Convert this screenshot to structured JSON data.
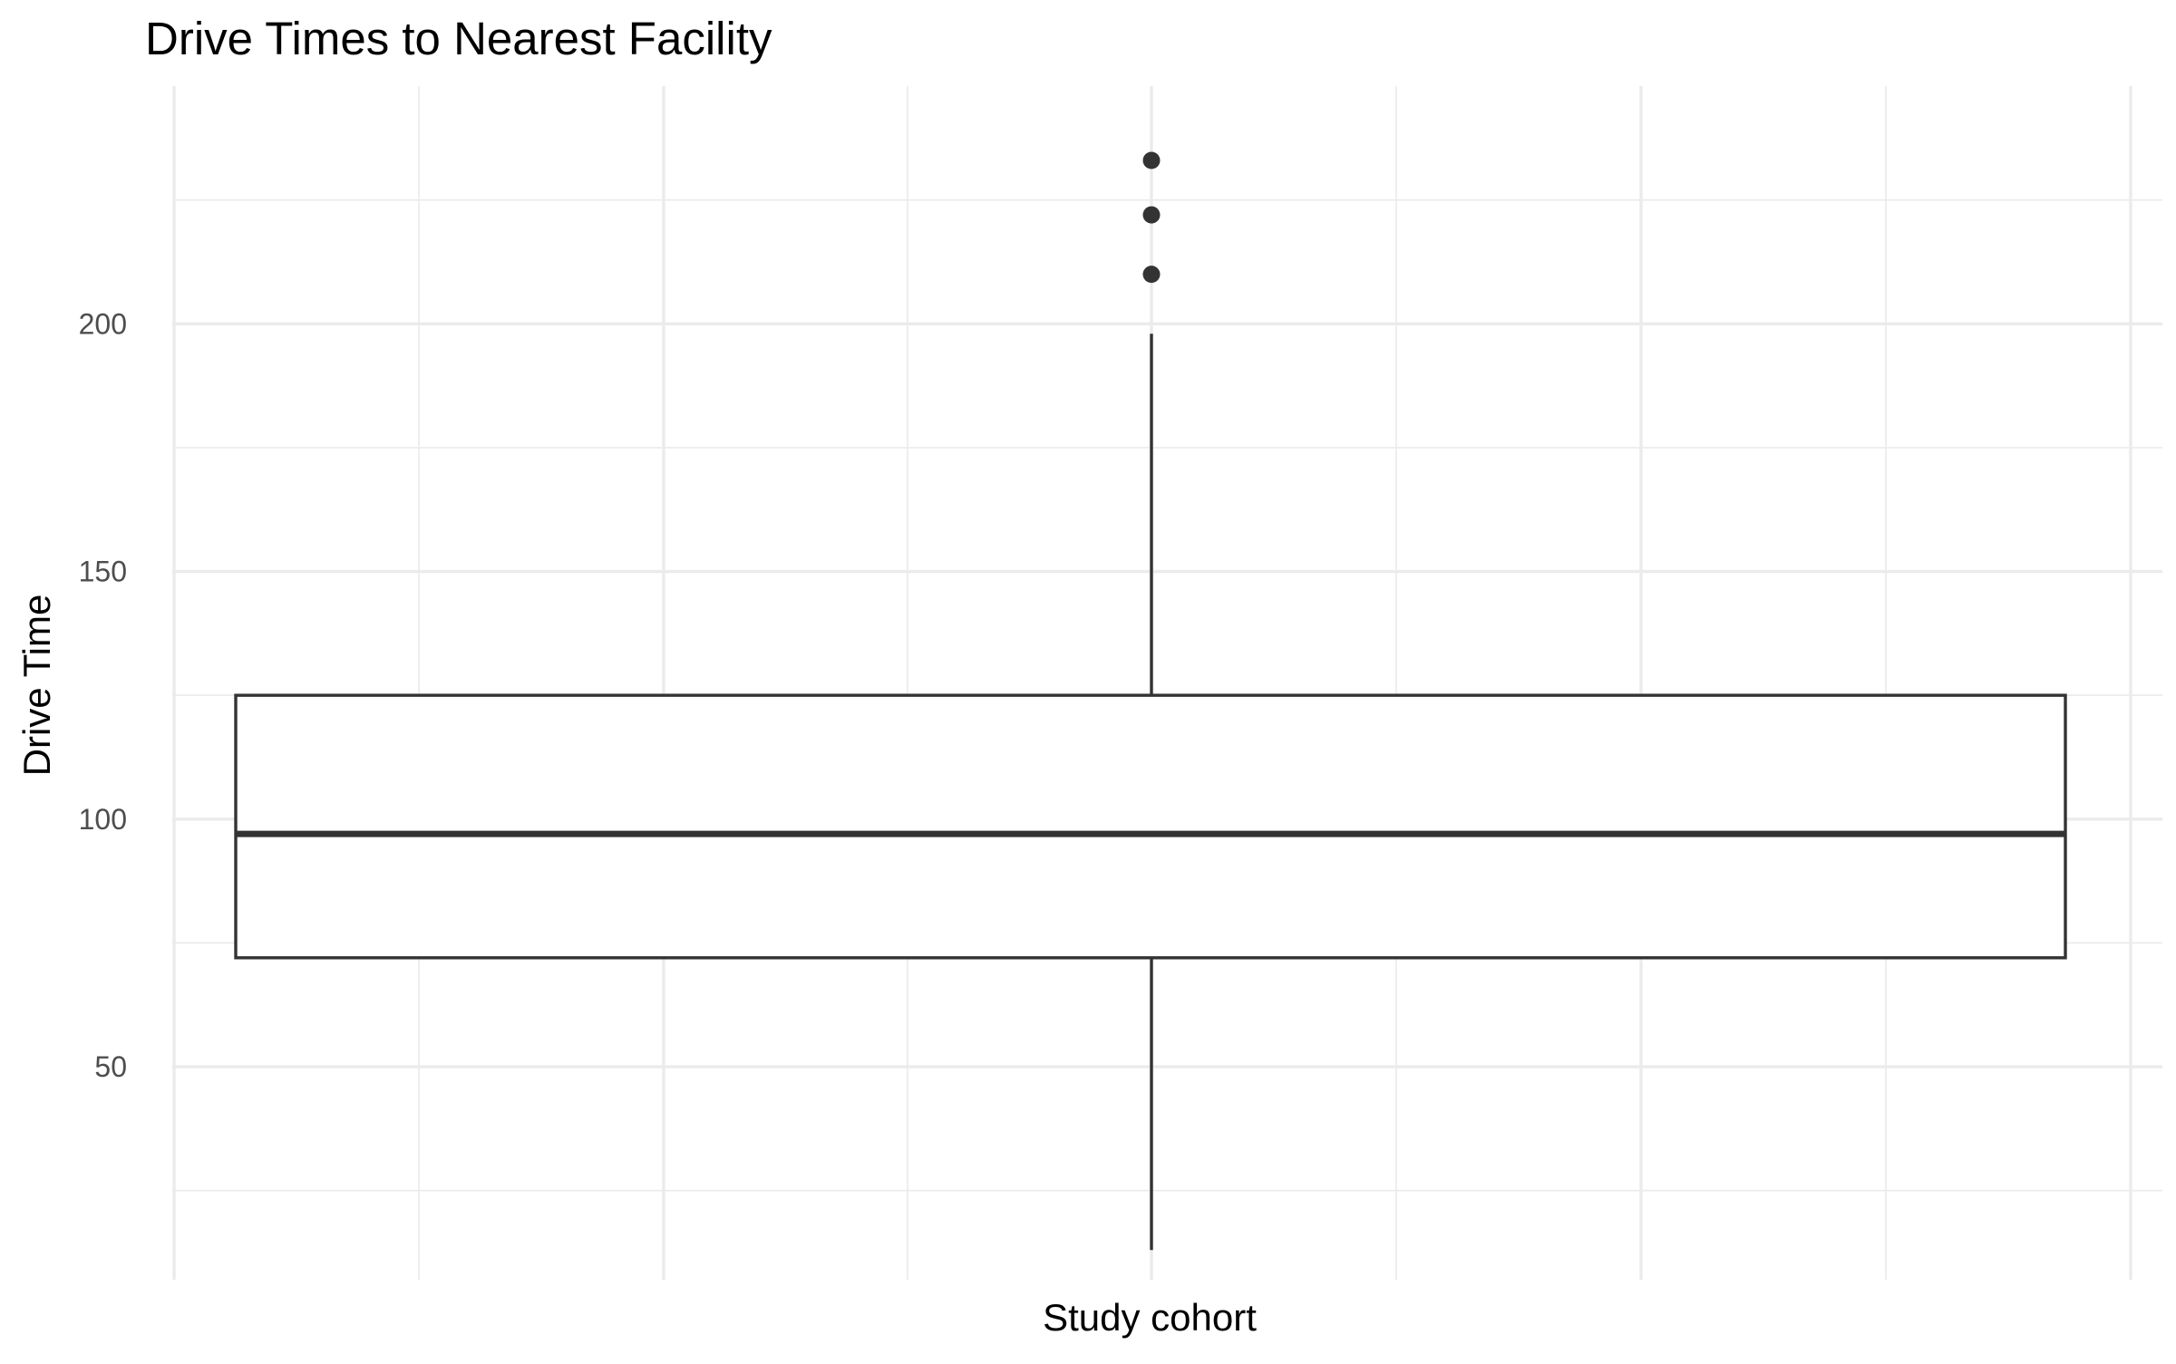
{
  "chart_data": {
    "type": "box",
    "title": "Drive Times to Nearest Facility",
    "xlabel": "Study cohort",
    "ylabel": "Drive Time",
    "y_ticks": [
      50,
      100,
      150,
      200
    ],
    "ylim": [
      7,
      248
    ],
    "grid": true,
    "categories": [
      "Study cohort"
    ],
    "boxes": [
      {
        "category": "Study cohort",
        "min": 13,
        "q1": 72,
        "median": 97,
        "q3": 125,
        "max": 198,
        "outliers": [
          210,
          222,
          233
        ]
      }
    ]
  },
  "colors": {
    "background": "#ffffff",
    "grid": "#ebebeb",
    "box_stroke": "#333333",
    "box_fill": "#ffffff",
    "tick_text": "#4d4d4d",
    "title_text": "#000000"
  }
}
